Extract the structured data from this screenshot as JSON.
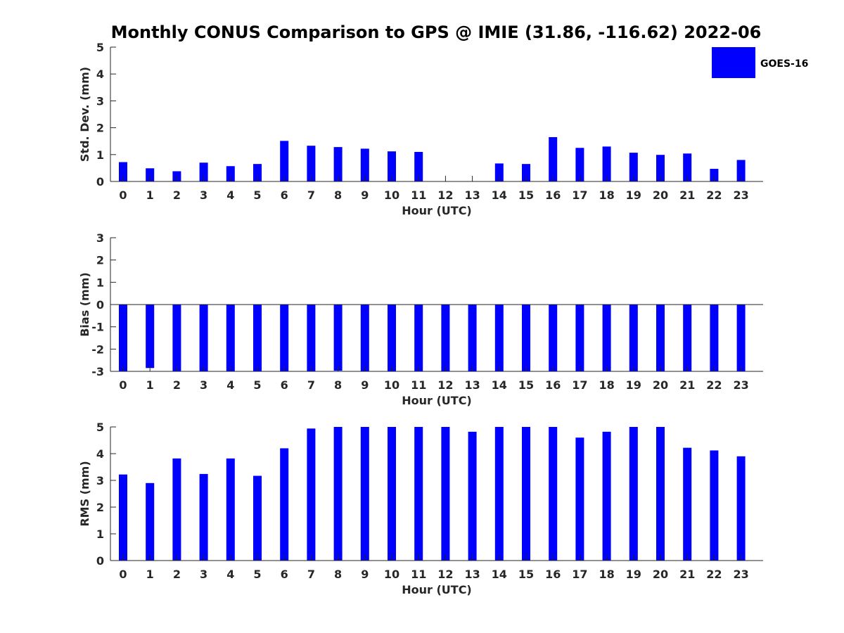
{
  "chart_data": {
    "title": "Monthly CONUS Comparison to GPS @ IMIE (31.86, -116.62) 2022-06",
    "legend": {
      "label": "GOES-16",
      "color": "#0000ff",
      "placement": "top-right"
    },
    "bar_color": "#0000ff",
    "panels": [
      {
        "type": "bar",
        "name": "std-dev",
        "xlabel": "Hour (UTC)",
        "ylabel": "Std. Dev. (mm)",
        "ylim": [
          0,
          5
        ],
        "yticks": [
          0,
          1,
          2,
          3,
          4,
          5
        ],
        "categories": [
          "0",
          "1",
          "2",
          "3",
          "4",
          "5",
          "6",
          "7",
          "8",
          "9",
          "10",
          "11",
          "12",
          "13",
          "14",
          "15",
          "16",
          "17",
          "18",
          "19",
          "20",
          "21",
          "22",
          "23"
        ],
        "values": [
          0.72,
          0.49,
          0.38,
          0.7,
          0.57,
          0.65,
          1.51,
          1.33,
          1.28,
          1.22,
          1.12,
          1.1,
          0.0,
          0.0,
          0.67,
          0.65,
          1.65,
          1.25,
          1.3,
          1.07,
          0.99,
          1.04,
          0.47,
          0.8
        ]
      },
      {
        "type": "bar",
        "name": "bias",
        "xlabel": "Hour (UTC)",
        "ylabel": "Bias (mm)",
        "ylim": [
          -3,
          3
        ],
        "yticks": [
          -3,
          -2,
          -1,
          0,
          1,
          2,
          3
        ],
        "categories": [
          "0",
          "1",
          "2",
          "3",
          "4",
          "5",
          "6",
          "7",
          "8",
          "9",
          "10",
          "11",
          "12",
          "13",
          "14",
          "15",
          "16",
          "17",
          "18",
          "19",
          "20",
          "21",
          "22",
          "23"
        ],
        "values": [
          -3,
          -2.85,
          -3,
          -3,
          -3,
          -3,
          -3,
          -3,
          -2.97,
          -3,
          -3,
          -3,
          -3,
          -3,
          -3,
          -3,
          -3,
          -3,
          -3,
          -3,
          -3,
          -3,
          -3,
          -3
        ]
      },
      {
        "type": "bar",
        "name": "rms",
        "xlabel": "Hour (UTC)",
        "ylabel": "RMS (mm)",
        "ylim": [
          0,
          5
        ],
        "yticks": [
          0,
          1,
          2,
          3,
          4,
          5
        ],
        "categories": [
          "0",
          "1",
          "2",
          "3",
          "4",
          "5",
          "6",
          "7",
          "8",
          "9",
          "10",
          "11",
          "12",
          "13",
          "14",
          "15",
          "16",
          "17",
          "18",
          "19",
          "20",
          "21",
          "22",
          "23"
        ],
        "values": [
          3.22,
          2.9,
          3.82,
          3.24,
          3.82,
          3.17,
          4.2,
          4.94,
          5,
          5,
          5,
          5,
          5,
          4.82,
          5,
          5,
          5,
          4.6,
          4.82,
          5,
          5,
          4.22,
          4.12,
          3.9
        ]
      }
    ]
  }
}
